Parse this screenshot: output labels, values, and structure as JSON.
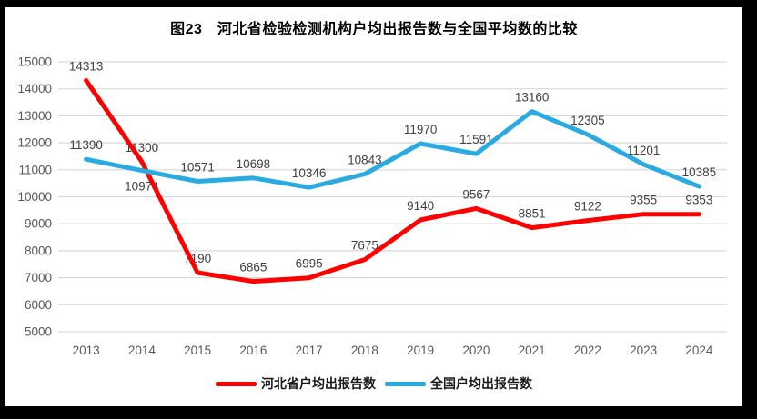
{
  "frame": {
    "border_color": "#000000",
    "background_color": "#ffffff"
  },
  "chart_data": {
    "type": "line",
    "title": "图23　河北省检验检测机构户均出报告数与全国平均数的比较",
    "categories": [
      "2013",
      "2014",
      "2015",
      "2016",
      "2017",
      "2018",
      "2019",
      "2020",
      "2021",
      "2022",
      "2023",
      "2024"
    ],
    "series": [
      {
        "name": "河北省户均出报告数",
        "color": "#FF0000",
        "values": [
          14313,
          11300,
          7190,
          6865,
          6995,
          7675,
          9140,
          9567,
          8851,
          9122,
          9355,
          9353
        ],
        "label_below_indices": []
      },
      {
        "name": "全国户均出报告数",
        "color": "#29ABE2",
        "values": [
          11390,
          10974,
          10571,
          10698,
          10346,
          10843,
          11970,
          11591,
          13160,
          12305,
          11201,
          10385
        ],
        "label_below_indices": [
          1
        ]
      }
    ],
    "xlabel": "",
    "ylabel": "",
    "ylim": [
      5000,
      15000
    ],
    "ytick_step": 1000,
    "grid": true,
    "gridline_color": "#D9D9D9",
    "axis_label_color": "#595959",
    "data_label_color": "#404040",
    "legend_position": "bottom",
    "data_labels_shown": true
  }
}
